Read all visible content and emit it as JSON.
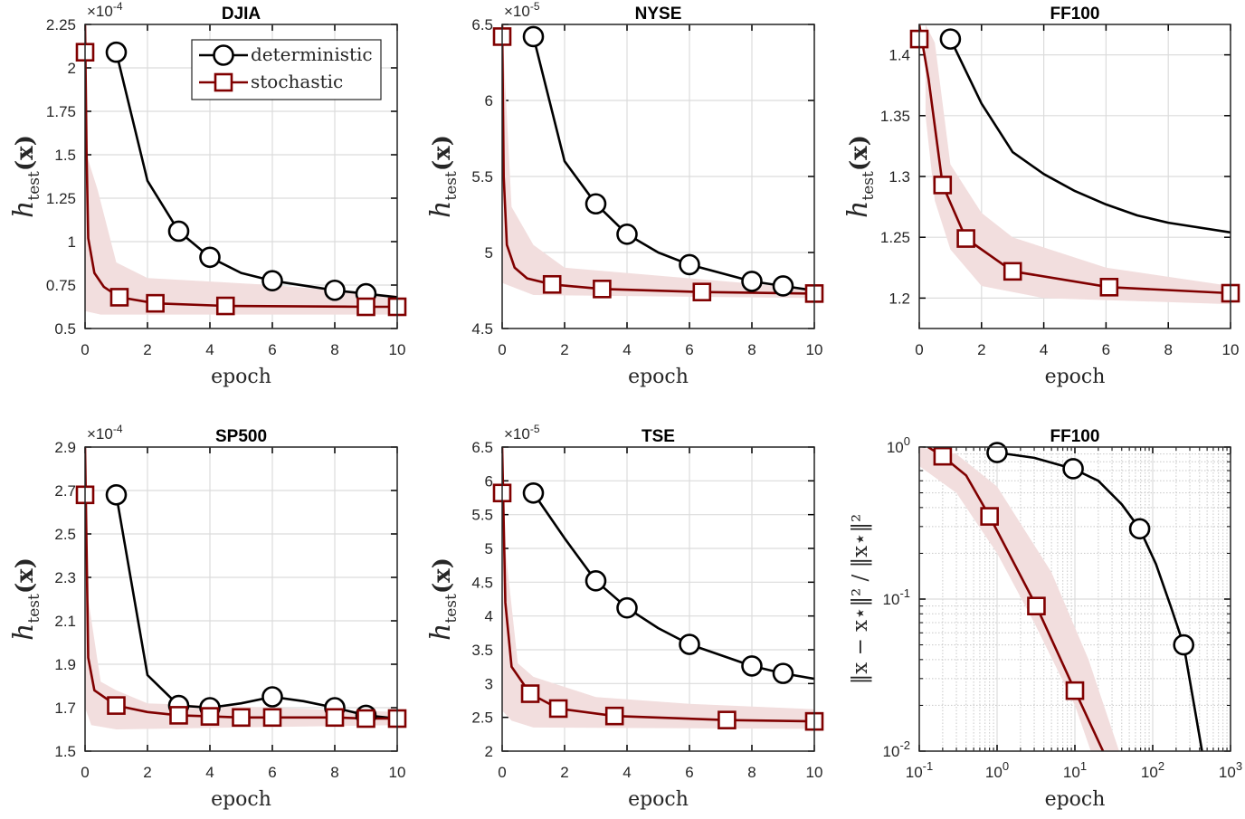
{
  "colors": {
    "deterministic": "#000000",
    "stochastic": "#800000",
    "band": "#f2dede",
    "grid": "#dcdcdc"
  },
  "legend": {
    "placement": "top-right",
    "items": [
      "deterministic",
      "stochastic"
    ]
  },
  "chart_data": [
    {
      "type": "line",
      "title": "DJIA",
      "xlabel": "epoch",
      "ylabel": {
        "main": "h",
        "sub": "test",
        "rest": "(x)"
      },
      "exponent": {
        "base": "×10",
        "power": "-4"
      },
      "xlim": [
        0,
        10
      ],
      "ylim": [
        0.5,
        2.25
      ],
      "xscale": "linear",
      "yscale": "linear",
      "grid": true,
      "xticks": [
        0,
        2,
        4,
        6,
        8,
        10
      ],
      "yticks": [
        0.5,
        0.75,
        1,
        1.25,
        1.5,
        1.75,
        2,
        2.25
      ],
      "ytick_labels": [
        "0.5",
        "0.75",
        "1",
        "1.25",
        "1.5",
        "1.75",
        "2",
        "2.25"
      ],
      "series": [
        {
          "name": "deterministic",
          "x": [
            1,
            2,
            3,
            4,
            5,
            6,
            8,
            9,
            10
          ],
          "y": [
            2.09,
            1.35,
            1.06,
            0.91,
            0.82,
            0.775,
            0.72,
            0.7,
            0.68
          ],
          "markers_x": [
            1,
            3,
            4,
            6,
            8,
            9
          ],
          "markers_y": [
            2.09,
            1.06,
            0.91,
            0.775,
            0.72,
            0.7
          ]
        },
        {
          "name": "stochastic",
          "x": [
            0,
            0.05,
            0.1,
            0.3,
            0.6,
            1.1,
            2.25,
            4.5,
            9,
            10
          ],
          "y": [
            2.25,
            1.5,
            1.02,
            0.82,
            0.74,
            0.68,
            0.645,
            0.63,
            0.625,
            0.625
          ],
          "markers_x": [
            0,
            1.1,
            2.25,
            4.5,
            9,
            10
          ],
          "markers_y": [
            2.09,
            0.68,
            0.645,
            0.63,
            0.625,
            0.625
          ],
          "band_upper": {
            "x": [
              0,
              0.05,
              0.4,
              1,
              2,
              6,
              10
            ],
            "y": [
              2.25,
              1.5,
              1.3,
              0.88,
              0.79,
              0.75,
              0.69
            ]
          },
          "band_lower": {
            "x": [
              0,
              0.5,
              10
            ],
            "y": [
              0.6,
              0.58,
              0.58
            ]
          }
        }
      ]
    },
    {
      "type": "line",
      "title": "NYSE",
      "xlabel": "epoch",
      "ylabel": {
        "main": "h",
        "sub": "test",
        "rest": "(x)"
      },
      "exponent": {
        "base": "×10",
        "power": "-5"
      },
      "xlim": [
        0,
        10
      ],
      "ylim": [
        4.5,
        6.5
      ],
      "xscale": "linear",
      "yscale": "linear",
      "grid": true,
      "xticks": [
        0,
        2,
        4,
        6,
        8,
        10
      ],
      "yticks": [
        4.5,
        5,
        5.5,
        6,
        6.5
      ],
      "ytick_labels": [
        "4.5",
        "5",
        "5.5",
        "6",
        "6.5"
      ],
      "series": [
        {
          "name": "deterministic",
          "x": [
            1,
            2,
            3,
            4,
            5,
            6,
            8,
            9,
            10
          ],
          "y": [
            6.42,
            5.6,
            5.32,
            5.12,
            5.0,
            4.92,
            4.81,
            4.78,
            4.75
          ],
          "markers_x": [
            1,
            3,
            4,
            6,
            8,
            9
          ],
          "markers_y": [
            6.42,
            5.32,
            5.12,
            4.92,
            4.81,
            4.78
          ]
        },
        {
          "name": "stochastic",
          "x": [
            0,
            0.05,
            0.15,
            0.4,
            0.8,
            1.6,
            3.2,
            6.4,
            10
          ],
          "y": [
            6.5,
            5.5,
            5.05,
            4.9,
            4.83,
            4.79,
            4.76,
            4.74,
            4.73
          ],
          "markers_x": [
            0,
            1.6,
            3.2,
            6.4,
            10
          ],
          "markers_y": [
            6.42,
            4.79,
            4.76,
            4.74,
            4.73
          ],
          "band_upper": {
            "x": [
              0,
              0.3,
              1,
              2,
              10
            ],
            "y": [
              6.5,
              5.3,
              5.05,
              4.9,
              4.76
            ]
          },
          "band_lower": {
            "x": [
              0,
              1,
              10
            ],
            "y": [
              4.8,
              4.72,
              4.7
            ]
          }
        }
      ]
    },
    {
      "type": "line",
      "title": "FF100",
      "xlabel": "epoch",
      "ylabel": {
        "main": "h",
        "sub": "test",
        "rest": "(x)"
      },
      "xlim": [
        0,
        10
      ],
      "ylim": [
        1.175,
        1.425
      ],
      "xscale": "linear",
      "yscale": "linear",
      "grid": true,
      "xticks": [
        0,
        2,
        4,
        6,
        8,
        10
      ],
      "yticks": [
        1.2,
        1.25,
        1.3,
        1.35,
        1.4
      ],
      "ytick_labels": [
        "1.2",
        "1.25",
        "1.3",
        "1.35",
        "1.4"
      ],
      "series": [
        {
          "name": "deterministic",
          "x": [
            1,
            2,
            3,
            4,
            5,
            6,
            7,
            8,
            10
          ],
          "y": [
            1.413,
            1.36,
            1.32,
            1.302,
            1.288,
            1.277,
            1.268,
            1.262,
            1.254
          ],
          "markers_x": [
            1
          ],
          "markers_y": [
            1.413
          ]
        },
        {
          "name": "stochastic",
          "x": [
            0,
            0.3,
            0.75,
            1.5,
            3,
            6.1,
            10
          ],
          "y": [
            1.425,
            1.38,
            1.293,
            1.249,
            1.222,
            1.209,
            1.204
          ],
          "markers_x": [
            0,
            0.75,
            1.5,
            3,
            6.1,
            10
          ],
          "markers_y": [
            1.413,
            1.293,
            1.249,
            1.222,
            1.209,
            1.204
          ],
          "band_upper": {
            "x": [
              0.2,
              0.5,
              1,
              2,
              3,
              6,
              10
            ],
            "y": [
              1.425,
              1.41,
              1.31,
              1.27,
              1.25,
              1.225,
              1.21
            ]
          },
          "band_lower": {
            "x": [
              0.2,
              0.5,
              1,
              2,
              4,
              10
            ],
            "y": [
              1.35,
              1.28,
              1.24,
              1.21,
              1.2,
              1.195
            ]
          }
        }
      ]
    },
    {
      "type": "line",
      "title": "SP500",
      "xlabel": "epoch",
      "ylabel": {
        "main": "h",
        "sub": "test",
        "rest": "(x)"
      },
      "exponent": {
        "base": "×10",
        "power": "-4"
      },
      "xlim": [
        0,
        10
      ],
      "ylim": [
        1.5,
        2.9
      ],
      "xscale": "linear",
      "yscale": "linear",
      "grid": true,
      "xticks": [
        0,
        2,
        4,
        6,
        8,
        10
      ],
      "yticks": [
        1.5,
        1.7,
        1.9,
        2.1,
        2.3,
        2.5,
        2.7,
        2.9
      ],
      "ytick_labels": [
        "1.5",
        "1.7",
        "1.9",
        "2.1",
        "2.3",
        "2.5",
        "2.7",
        "2.9"
      ],
      "series": [
        {
          "name": "deterministic",
          "x": [
            1,
            2,
            3,
            4,
            5,
            6,
            7,
            8,
            9,
            10
          ],
          "y": [
            2.68,
            1.85,
            1.71,
            1.7,
            1.72,
            1.75,
            1.73,
            1.7,
            1.665,
            1.65
          ],
          "markers_x": [
            1,
            3,
            4,
            6,
            8,
            9
          ],
          "markers_y": [
            2.68,
            1.71,
            1.7,
            1.75,
            1.7,
            1.665
          ]
        },
        {
          "name": "stochastic",
          "x": [
            0,
            0.1,
            0.3,
            1,
            2,
            3,
            4,
            5,
            6,
            8,
            9,
            10
          ],
          "y": [
            2.9,
            1.93,
            1.78,
            1.71,
            1.68,
            1.665,
            1.66,
            1.655,
            1.655,
            1.655,
            1.65,
            1.65
          ],
          "markers_x": [
            0,
            1,
            3,
            4,
            5,
            6,
            8,
            9,
            10
          ],
          "markers_y": [
            2.68,
            1.71,
            1.665,
            1.66,
            1.655,
            1.655,
            1.655,
            1.65,
            1.65
          ],
          "band_upper": {
            "x": [
              0,
              0.1,
              0.5,
              1,
              2,
              10
            ],
            "y": [
              2.9,
              2.2,
              1.82,
              1.78,
              1.72,
              1.68
            ]
          },
          "band_lower": {
            "x": [
              0,
              0.2,
              1,
              10
            ],
            "y": [
              1.7,
              1.62,
              1.6,
              1.62
            ]
          }
        }
      ]
    },
    {
      "type": "line",
      "title": "TSE",
      "xlabel": "epoch",
      "ylabel": {
        "main": "h",
        "sub": "test",
        "rest": "(x)"
      },
      "exponent": {
        "base": "×10",
        "power": "-5"
      },
      "xlim": [
        0,
        10
      ],
      "ylim": [
        2,
        6.5
      ],
      "xscale": "linear",
      "yscale": "linear",
      "grid": true,
      "xticks": [
        0,
        2,
        4,
        6,
        8,
        10
      ],
      "yticks": [
        2,
        2.5,
        3,
        3.5,
        4,
        4.5,
        5,
        5.5,
        6,
        6.5
      ],
      "ytick_labels": [
        "2",
        "2.5",
        "3",
        "3.5",
        "4",
        "4.5",
        "5",
        "5.5",
        "6",
        "6.5"
      ],
      "series": [
        {
          "name": "deterministic",
          "x": [
            1,
            2,
            3,
            4,
            5,
            6,
            8,
            9,
            10
          ],
          "y": [
            5.82,
            5.15,
            4.52,
            4.12,
            3.82,
            3.58,
            3.26,
            3.15,
            3.07
          ],
          "markers_x": [
            1,
            3,
            4,
            6,
            8,
            9
          ],
          "markers_y": [
            5.82,
            4.52,
            4.12,
            3.58,
            3.26,
            3.15
          ]
        },
        {
          "name": "stochastic",
          "x": [
            0,
            0.1,
            0.3,
            0.9,
            1.8,
            3.6,
            7.2,
            10
          ],
          "y": [
            6.5,
            4.2,
            3.25,
            2.85,
            2.63,
            2.52,
            2.46,
            2.44
          ],
          "markers_x": [
            0,
            0.9,
            1.8,
            3.6,
            7.2,
            10
          ],
          "markers_y": [
            5.82,
            2.85,
            2.63,
            2.52,
            2.46,
            2.44
          ],
          "band_upper": {
            "x": [
              0,
              0.1,
              0.5,
              1,
              3,
              6,
              10
            ],
            "y": [
              6.5,
              5.0,
              3.3,
              3.1,
              2.8,
              2.7,
              2.62
            ]
          },
          "band_lower": {
            "x": [
              0,
              0.3,
              1,
              10
            ],
            "y": [
              2.6,
              2.45,
              2.35,
              2.33
            ]
          }
        }
      ]
    },
    {
      "type": "line",
      "title": "FF100",
      "xlabel": "epoch",
      "ylabel": {
        "main": "‖x − x⋆‖² / ‖x⋆‖²",
        "sub": "",
        "rest": ""
      },
      "xlim": [
        0.1,
        1000
      ],
      "ylim": [
        0.01,
        1
      ],
      "xscale": "log",
      "yscale": "log",
      "grid": true,
      "xticks": [
        0.1,
        1,
        10,
        100,
        1000
      ],
      "xtick_labels": [
        "10^-1",
        "10^0",
        "10^1",
        "10^2",
        "10^3"
      ],
      "yticks": [
        0.01,
        0.1,
        1
      ],
      "ytick_labels": [
        "10^-2",
        "10^-1",
        "10^0"
      ],
      "series": [
        {
          "name": "deterministic",
          "x": [
            1,
            3,
            9.5,
            20,
            40,
            68,
            110,
            170,
            250,
            330,
            430
          ],
          "y": [
            0.92,
            0.85,
            0.72,
            0.6,
            0.42,
            0.29,
            0.17,
            0.09,
            0.05,
            0.022,
            0.01
          ],
          "markers_x": [
            1,
            9.5,
            68,
            250
          ],
          "markers_y": [
            0.92,
            0.72,
            0.29,
            0.05
          ]
        },
        {
          "name": "stochastic",
          "x": [
            0.13,
            0.2,
            0.4,
            0.8,
            3.2,
            10,
            23
          ],
          "y": [
            1.0,
            0.87,
            0.65,
            0.35,
            0.09,
            0.025,
            0.01
          ],
          "markers_x": [
            0.2,
            0.8,
            3.2,
            10
          ],
          "markers_y": [
            0.87,
            0.35,
            0.09,
            0.025
          ],
          "band_upper": {
            "x": [
              0.1,
              0.3,
              1,
              5,
              15,
              37
            ],
            "y": [
              1.0,
              0.9,
              0.55,
              0.15,
              0.04,
              0.01
            ]
          },
          "band_lower": {
            "x": [
              0.1,
              0.3,
              1,
              3,
              10,
              16
            ],
            "y": [
              0.75,
              0.5,
              0.2,
              0.07,
              0.02,
              0.01
            ]
          }
        }
      ]
    }
  ]
}
